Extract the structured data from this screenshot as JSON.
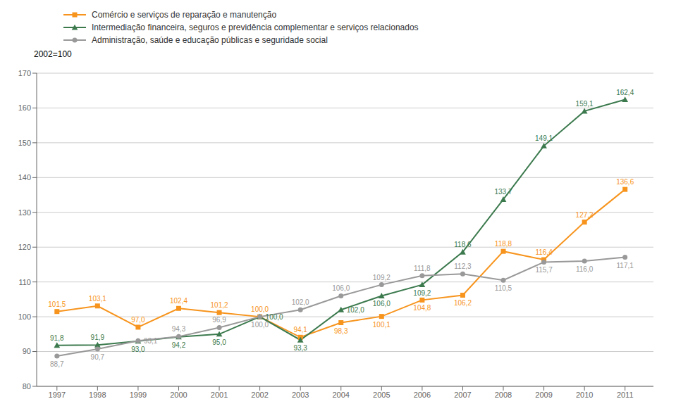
{
  "chart_data": {
    "type": "line",
    "subtitle": "2002=100",
    "x": [
      1997,
      1998,
      1999,
      2000,
      2001,
      2002,
      2003,
      2004,
      2005,
      2006,
      2007,
      2008,
      2009,
      2010,
      2011
    ],
    "xlim": [
      1996.5,
      2011.7
    ],
    "xticks": [
      1997,
      1998,
      1999,
      2000,
      2001,
      2002,
      2003,
      2004,
      2005,
      2006,
      2007,
      2008,
      2009,
      2010,
      2011
    ],
    "ylim": [
      80,
      170
    ],
    "yticks": [
      80,
      90,
      100,
      110,
      120,
      130,
      140,
      150,
      160,
      170
    ],
    "grid": true,
    "data_labels": true,
    "series": [
      {
        "name": "Comércio e serviços de reparação e manutenção",
        "color": "#F7941D",
        "marker": "square",
        "values": [
          101.5,
          103.1,
          97.0,
          102.4,
          101.2,
          100.0,
          94.1,
          98.3,
          100.1,
          104.8,
          106.2,
          118.8,
          116.4,
          127.2,
          136.6
        ],
        "value_labels": [
          "101,5",
          "103,1",
          "97,0",
          "102,4",
          "101,2",
          "100,0",
          "94,1",
          "98,3",
          "100,1",
          "104,8",
          "106,2",
          "118,8",
          "116,4",
          "127,2",
          "136,6"
        ]
      },
      {
        "name": "Intermediação financeira, seguros e previdência complementar e serviços relacionados",
        "color": "#3C7A4E",
        "marker": "triangle",
        "values": [
          91.8,
          91.9,
          93.0,
          94.2,
          95.0,
          100.0,
          93.3,
          102.0,
          106.0,
          109.2,
          118.6,
          133.7,
          149.1,
          159.1,
          162.4
        ],
        "value_labels": [
          "91,8",
          "91,9",
          "93,0",
          "94,2",
          "95,0",
          "100,0",
          "93,3",
          "102,0",
          "106,0",
          "109,2",
          "118,6",
          "133,7",
          "149,1",
          "159,1",
          "162,4"
        ]
      },
      {
        "name": "Administração, saúde e educação públicas e seguridade social",
        "color": "#999999",
        "marker": "circle",
        "values": [
          88.7,
          90.7,
          93.1,
          94.3,
          96.9,
          100.0,
          102.0,
          106.0,
          109.2,
          111.8,
          112.3,
          110.5,
          115.7,
          116.0,
          117.1
        ],
        "value_labels": [
          "88,7",
          "90,7",
          "93,1",
          "94,3",
          "96,9",
          "100,0",
          "102,0",
          "106,0",
          "109,2",
          "111,8",
          "112,3",
          "110,5",
          "115,7",
          "116,0",
          "117,1"
        ]
      }
    ]
  }
}
